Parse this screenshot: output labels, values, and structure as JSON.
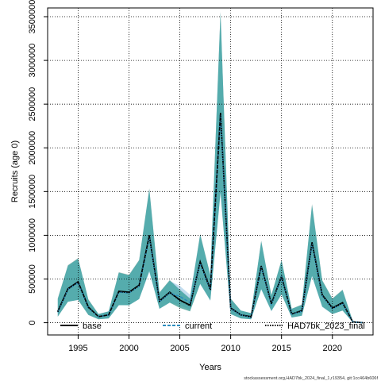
{
  "chart_data": {
    "type": "line",
    "title": "",
    "xlabel": "Years",
    "ylabel": "Recruits (age 0)",
    "xlim": [
      1992,
      2024
    ],
    "ylim": [
      -140000,
      3600000
    ],
    "x_ticks": [
      1995,
      2000,
      2005,
      2010,
      2015,
      2020
    ],
    "y_ticks": [
      0,
      500000,
      1000000,
      1500000,
      2000000,
      2500000,
      3000000,
      3500000
    ],
    "grid": true,
    "legend_position": "bottom",
    "x": [
      1993,
      1994,
      1995,
      1996,
      1997,
      1998,
      1999,
      2000,
      2001,
      2002,
      2003,
      2004,
      2005,
      2006,
      2007,
      2008,
      2009,
      2010,
      2011,
      2012,
      2013,
      2014,
      2015,
      2016,
      2017,
      2018,
      2019,
      2020,
      2021,
      2022,
      2023
    ],
    "series": [
      {
        "name": "base",
        "color": "#000000",
        "style": "solid",
        "values": [
          130000,
          390000,
          470000,
          180000,
          70000,
          90000,
          360000,
          350000,
          430000,
          1000000,
          250000,
          350000,
          260000,
          200000,
          700000,
          380000,
          2400000,
          170000,
          90000,
          70000,
          650000,
          220000,
          530000,
          100000,
          140000,
          920000,
          320000,
          170000,
          230000,
          10000,
          0
        ],
        "lower": [
          70000,
          240000,
          260000,
          90000,
          40000,
          50000,
          200000,
          200000,
          270000,
          600000,
          160000,
          230000,
          170000,
          130000,
          450000,
          260000,
          1500000,
          100000,
          50000,
          40000,
          390000,
          140000,
          330000,
          60000,
          80000,
          540000,
          190000,
          100000,
          140000,
          5000,
          0
        ],
        "upper": [
          280000,
          660000,
          740000,
          270000,
          100000,
          130000,
          580000,
          550000,
          720000,
          1540000,
          350000,
          490000,
          380000,
          280000,
          1020000,
          550000,
          3560000,
          280000,
          140000,
          110000,
          940000,
          320000,
          720000,
          160000,
          210000,
          1360000,
          490000,
          280000,
          380000,
          20000,
          0
        ]
      },
      {
        "name": "current",
        "color": "#2b8cbe",
        "style": "dashed",
        "values": [
          120000,
          380000,
          460000,
          170000,
          70000,
          90000,
          350000,
          340000,
          420000,
          980000,
          240000,
          340000,
          300000,
          230000,
          680000,
          370000,
          2380000,
          160000,
          90000,
          60000,
          640000,
          210000,
          520000,
          100000,
          130000,
          900000,
          310000,
          160000,
          220000,
          10000,
          0
        ],
        "lower": [
          70000,
          240000,
          260000,
          90000,
          40000,
          50000,
          200000,
          200000,
          270000,
          580000,
          160000,
          230000,
          200000,
          150000,
          440000,
          250000,
          1480000,
          100000,
          50000,
          40000,
          380000,
          130000,
          320000,
          60000,
          80000,
          530000,
          180000,
          100000,
          140000,
          5000,
          0
        ],
        "upper": [
          270000,
          650000,
          730000,
          260000,
          100000,
          130000,
          570000,
          540000,
          710000,
          1520000,
          340000,
          480000,
          420000,
          320000,
          1000000,
          540000,
          3540000,
          270000,
          140000,
          110000,
          930000,
          310000,
          710000,
          160000,
          200000,
          1340000,
          480000,
          270000,
          370000,
          20000,
          0
        ]
      },
      {
        "name": "HAD7bk_2023_final",
        "color": "#1a9a8f",
        "style": "dotted",
        "values": [
          125000,
          385000,
          465000,
          175000,
          70000,
          90000,
          355000,
          345000,
          425000,
          990000,
          245000,
          345000,
          255000,
          195000,
          690000,
          375000,
          2390000,
          165000,
          90000,
          65000,
          645000,
          215000,
          525000,
          100000,
          135000,
          910000,
          315000,
          165000,
          225000,
          10000,
          0
        ],
        "lower": [
          70000,
          240000,
          260000,
          90000,
          40000,
          50000,
          200000,
          200000,
          270000,
          590000,
          160000,
          230000,
          170000,
          130000,
          445000,
          255000,
          1490000,
          100000,
          50000,
          40000,
          385000,
          135000,
          325000,
          60000,
          80000,
          535000,
          185000,
          100000,
          140000,
          5000,
          0
        ],
        "upper": [
          275000,
          655000,
          735000,
          265000,
          100000,
          130000,
          575000,
          545000,
          715000,
          1530000,
          345000,
          485000,
          375000,
          275000,
          1010000,
          545000,
          3550000,
          275000,
          140000,
          110000,
          935000,
          315000,
          715000,
          160000,
          205000,
          1350000,
          485000,
          275000,
          375000,
          20000,
          0
        ]
      }
    ]
  },
  "footer": "stockassessment.org,HAD7bk_2024_final_1,r19354, git:1cc464b606f"
}
